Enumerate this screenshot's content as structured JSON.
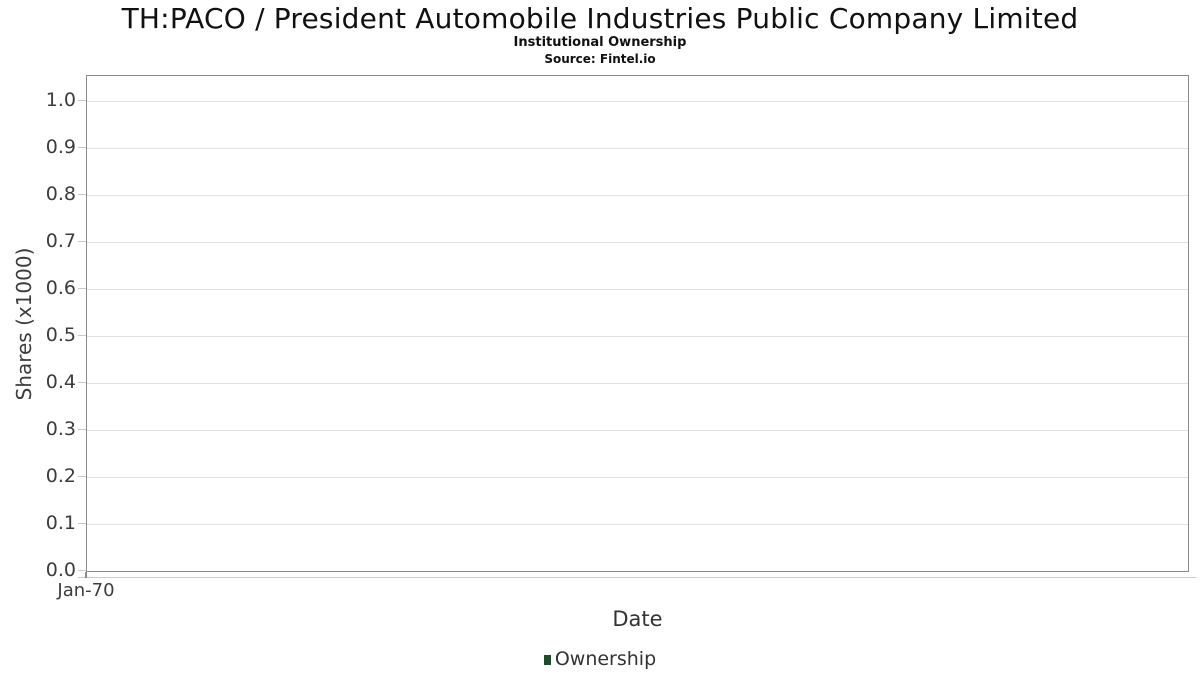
{
  "chart_data": {
    "type": "line",
    "title": "TH:PACO / President Automobile Industries Public Company Limited",
    "subtitle": "Institutional Ownership",
    "source": "Source: Fintel.io",
    "xlabel": "Date",
    "ylabel": "Shares (x1000)",
    "x_ticks": [
      "Jan-70"
    ],
    "y_ticks": [
      "0.0",
      "0.1",
      "0.2",
      "0.3",
      "0.4",
      "0.5",
      "0.6",
      "0.7",
      "0.8",
      "0.9",
      "1.0"
    ],
    "ylim": [
      0.0,
      1.06
    ],
    "grid": "horizontal",
    "legend_position": "bottom-center",
    "series": [
      {
        "name": "Ownership",
        "color": "#1d4d28",
        "x": [],
        "values": []
      }
    ]
  },
  "colors": {
    "background": "#ffffff",
    "plot_border": "#8a8a8a",
    "gridline": "#e0e0e0",
    "tick_mark": "#c9c9c9",
    "tick_label": "#3c3c3c",
    "axis_label": "#3c3c3c",
    "title_text": "#111111",
    "legend_text": "#333333"
  }
}
